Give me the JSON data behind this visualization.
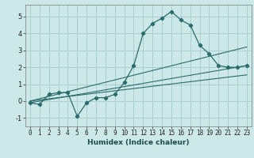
{
  "xlabel": "Humidex (Indice chaleur)",
  "bg_color": "#cde8e8",
  "grid_color": "#aacece",
  "line_color": "#2a6b6b",
  "xlim": [
    -0.5,
    23.5
  ],
  "ylim": [
    -1.5,
    5.7
  ],
  "xticks": [
    0,
    1,
    2,
    3,
    4,
    5,
    6,
    7,
    8,
    9,
    10,
    11,
    12,
    13,
    14,
    15,
    16,
    17,
    18,
    19,
    20,
    21,
    22,
    23
  ],
  "yticks": [
    -1,
    0,
    1,
    2,
    3,
    4,
    5
  ],
  "curve_x": [
    0,
    1,
    2,
    3,
    4,
    5,
    6,
    7,
    8,
    9,
    10,
    11,
    12,
    13,
    14,
    15,
    16,
    17,
    18,
    19,
    20,
    21,
    22,
    23
  ],
  "curve_y": [
    -0.1,
    -0.2,
    0.4,
    0.5,
    0.5,
    -0.9,
    -0.1,
    0.2,
    0.2,
    0.4,
    1.1,
    2.1,
    4.0,
    4.6,
    4.9,
    5.3,
    4.8,
    4.5,
    3.3,
    2.8,
    2.1,
    2.0,
    2.0,
    2.1
  ],
  "trend_lines": [
    {
      "x": [
        0,
        23
      ],
      "y": [
        -0.1,
        2.1
      ]
    },
    {
      "x": [
        0,
        23
      ],
      "y": [
        0.0,
        1.55
      ]
    },
    {
      "x": [
        0,
        23
      ],
      "y": [
        0.0,
        3.2
      ]
    }
  ],
  "xlabel_fontsize": 6.5,
  "tick_fontsize": 5.5,
  "ytick_fontsize": 6.0
}
